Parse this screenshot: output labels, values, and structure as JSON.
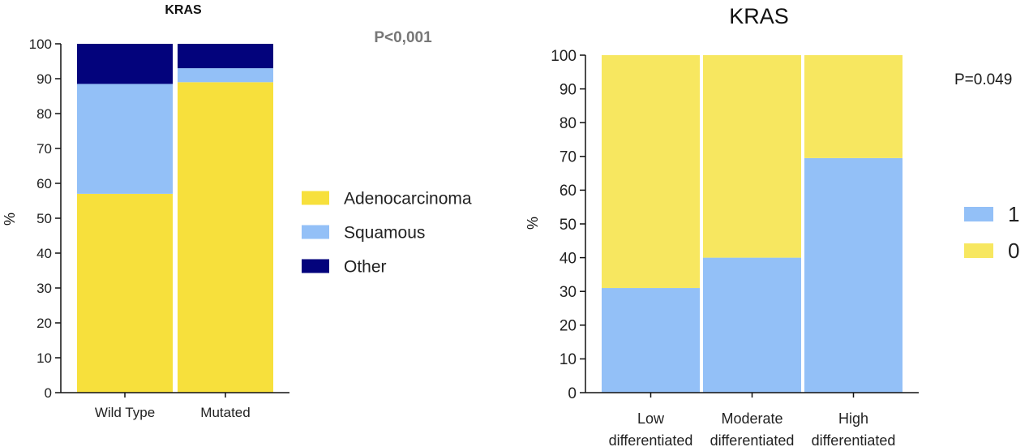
{
  "chart_data": [
    {
      "type": "bar",
      "stacked": true,
      "title": "KRAS",
      "annotation": "P<0,001",
      "xlabel": "",
      "ylabel": "%",
      "ylim": [
        0,
        100
      ],
      "yticks": [
        0,
        10,
        20,
        30,
        40,
        50,
        60,
        70,
        80,
        90,
        100
      ],
      "categories": [
        "Wild Type",
        "Mutated"
      ],
      "series": [
        {
          "name": "Adenocarcinoma",
          "values": [
            57,
            89
          ],
          "color": "#f7e03c"
        },
        {
          "name": "Squamous",
          "values": [
            31.5,
            4
          ],
          "color": "#93c0f7"
        },
        {
          "name": "Other",
          "values": [
            11.5,
            7
          ],
          "color": "#03037c"
        }
      ],
      "legend": "right",
      "grid": false
    },
    {
      "type": "bar",
      "stacked": true,
      "title": "KRAS",
      "annotation": "P=0.049",
      "xlabel": "",
      "ylabel": "%",
      "ylim": [
        0,
        100
      ],
      "yticks": [
        0,
        10,
        20,
        30,
        40,
        50,
        60,
        70,
        80,
        90,
        100
      ],
      "categories": [
        "Low differentiated",
        "Moderate differentiated",
        "High differentiated"
      ],
      "category_lines": [
        [
          "Low",
          "differentiated"
        ],
        [
          "Moderate",
          "differentiated"
        ],
        [
          "High",
          "differentiated"
        ]
      ],
      "series": [
        {
          "name": "1",
          "values": [
            31,
            40,
            69.5
          ],
          "color": "#93c0f7"
        },
        {
          "name": "0",
          "values": [
            69,
            60,
            30.5
          ],
          "color": "#f7e760"
        }
      ],
      "legend_order": [
        "1",
        "0"
      ],
      "legend": "right",
      "grid": false
    }
  ]
}
